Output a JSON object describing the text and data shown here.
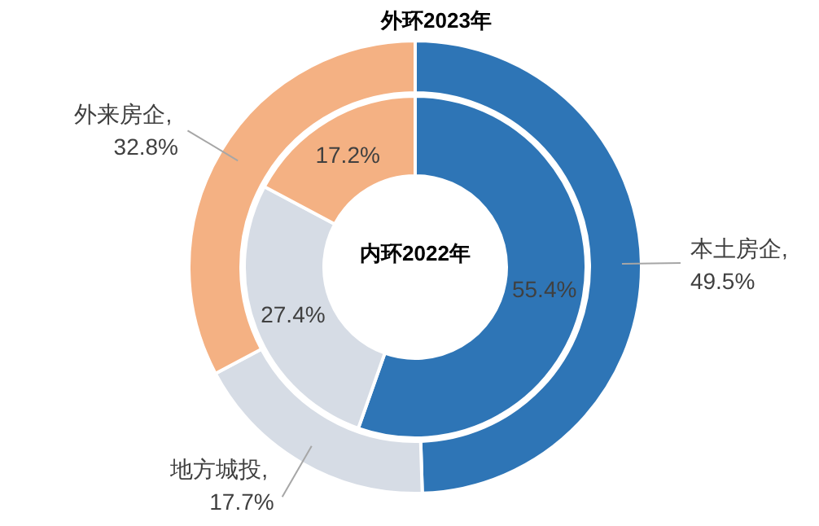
{
  "chart_data": {
    "type": "donut",
    "categories": [
      "本土房企",
      "地方城投",
      "外来房企"
    ],
    "colors": [
      "#2e75b6",
      "#d6dce5",
      "#f4b183"
    ],
    "series": [
      {
        "name": "外环2023年",
        "values": [
          49.5,
          17.7,
          32.8
        ],
        "value_labels": [
          ", 49.5%",
          ", 17.7%",
          ", 32.8%"
        ]
      },
      {
        "name": "内环2022年",
        "values": [
          55.4,
          27.4,
          17.2
        ],
        "value_labels": [
          "55.4%",
          "27.4%",
          "17.2%"
        ]
      }
    ]
  }
}
